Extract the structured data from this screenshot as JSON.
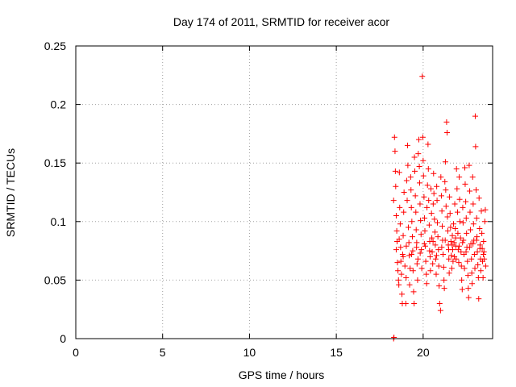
{
  "chart_data": {
    "type": "scatter",
    "title": "Day 174 of 2011, SRMTID for receiver acor",
    "xlabel": "GPS time / hours",
    "ylabel": "SRMTID / TECUs",
    "xlim": [
      0,
      24
    ],
    "ylim": [
      0,
      0.25
    ],
    "x_ticks": [
      0,
      5,
      10,
      15,
      20
    ],
    "x_tick_labels": [
      "0",
      "5",
      "10",
      "15",
      "20"
    ],
    "y_ticks": [
      0,
      0.05,
      0.1,
      0.15,
      0.2,
      0.25
    ],
    "y_tick_labels": [
      "0",
      "0.05",
      "0.1",
      "0.15",
      "0.2",
      "0.25"
    ],
    "grid": true,
    "marker": "+",
    "color": "#ff0000",
    "series": [
      {
        "points": [
          [
            18.3,
            0.0
          ],
          [
            18.32,
            0.001
          ],
          [
            18.3,
            0.118
          ],
          [
            18.35,
            0.172
          ],
          [
            18.38,
            0.16
          ],
          [
            18.4,
            0.143
          ],
          [
            18.42,
            0.13
          ],
          [
            18.45,
            0.105
          ],
          [
            18.48,
            0.092
          ],
          [
            18.5,
            0.083
          ],
          [
            18.52,
            0.065
          ],
          [
            18.55,
            0.058
          ],
          [
            18.58,
            0.05
          ],
          [
            18.6,
            0.046
          ],
          [
            18.63,
            0.142
          ],
          [
            18.65,
            0.112
          ],
          [
            18.68,
            0.098
          ],
          [
            18.7,
            0.078
          ],
          [
            18.72,
            0.066
          ],
          [
            18.75,
            0.055
          ],
          [
            18.78,
            0.038
          ],
          [
            18.8,
            0.03
          ],
          [
            18.82,
            0.072
          ],
          [
            18.85,
            0.088
          ],
          [
            18.88,
            0.108
          ],
          [
            18.9,
            0.125
          ],
          [
            18.95,
            0.062
          ],
          [
            19.0,
            0.03
          ],
          [
            19.02,
            0.052
          ],
          [
            19.05,
            0.135
          ],
          [
            19.08,
            0.118
          ],
          [
            19.1,
            0.165
          ],
          [
            19.12,
            0.148
          ],
          [
            19.15,
            0.095
          ],
          [
            19.18,
            0.082
          ],
          [
            19.2,
            0.071
          ],
          [
            19.22,
            0.046
          ],
          [
            19.25,
            0.06
          ],
          [
            19.28,
            0.138
          ],
          [
            19.3,
            0.127
          ],
          [
            19.32,
            0.112
          ],
          [
            19.35,
            0.1
          ],
          [
            19.38,
            0.087
          ],
          [
            19.4,
            0.075
          ],
          [
            19.42,
            0.058
          ],
          [
            19.45,
            0.04
          ],
          [
            19.48,
            0.03
          ],
          [
            19.5,
            0.155
          ],
          [
            19.52,
            0.143
          ],
          [
            19.55,
            0.122
          ],
          [
            19.58,
            0.108
          ],
          [
            19.6,
            0.093
          ],
          [
            19.62,
            0.078
          ],
          [
            19.65,
            0.064
          ],
          [
            19.68,
            0.05
          ],
          [
            19.7,
            0.068
          ],
          [
            19.72,
            0.158
          ],
          [
            19.75,
            0.17
          ],
          [
            19.78,
            0.147
          ],
          [
            19.8,
            0.133
          ],
          [
            19.82,
            0.115
          ],
          [
            19.85,
            0.101
          ],
          [
            19.88,
            0.089
          ],
          [
            19.9,
            0.076
          ],
          [
            19.92,
            0.06
          ],
          [
            19.95,
            0.224
          ],
          [
            19.98,
            0.172
          ],
          [
            20.0,
            0.152
          ],
          [
            20.02,
            0.139
          ],
          [
            20.05,
            0.121
          ],
          [
            20.08,
            0.103
          ],
          [
            20.1,
            0.092
          ],
          [
            20.12,
            0.079
          ],
          [
            20.15,
            0.066
          ],
          [
            20.18,
            0.055
          ],
          [
            20.2,
            0.047
          ],
          [
            20.22,
            0.112
          ],
          [
            20.25,
            0.131
          ],
          [
            20.28,
            0.166
          ],
          [
            20.3,
            0.145
          ],
          [
            20.32,
            0.118
          ],
          [
            20.35,
            0.097
          ],
          [
            20.38,
            0.083
          ],
          [
            20.4,
            0.07
          ],
          [
            20.42,
            0.058
          ],
          [
            20.45,
            0.128
          ],
          [
            20.48,
            0.107
          ],
          [
            20.5,
            0.086
          ],
          [
            20.52,
            0.074
          ],
          [
            20.55,
            0.064
          ],
          [
            20.58,
            0.115
          ],
          [
            20.6,
            0.141
          ],
          [
            20.62,
            0.124
          ],
          [
            20.65,
            0.102
          ],
          [
            20.68,
            0.091
          ],
          [
            20.7,
            0.08
          ],
          [
            20.72,
            0.068
          ],
          [
            20.75,
            0.055
          ],
          [
            20.78,
            0.13
          ],
          [
            20.8,
            0.118
          ],
          [
            20.82,
            0.099
          ],
          [
            20.85,
            0.087
          ],
          [
            20.88,
            0.076
          ],
          [
            20.9,
            0.062
          ],
          [
            20.92,
            0.045
          ],
          [
            20.95,
            0.03
          ],
          [
            21.0,
            0.024
          ],
          [
            21.02,
            0.138
          ],
          [
            21.05,
            0.122
          ],
          [
            21.08,
            0.109
          ],
          [
            21.1,
            0.096
          ],
          [
            21.12,
            0.084
          ],
          [
            21.15,
            0.072
          ],
          [
            21.18,
            0.061
          ],
          [
            21.2,
            0.05
          ],
          [
            21.22,
            0.043
          ],
          [
            21.25,
            0.134
          ],
          [
            21.28,
            0.151
          ],
          [
            21.3,
            0.127
          ],
          [
            21.32,
            0.113
          ],
          [
            21.35,
            0.185
          ],
          [
            21.38,
            0.176
          ],
          [
            21.4,
            0.104
          ],
          [
            21.42,
            0.092
          ],
          [
            21.45,
            0.08
          ],
          [
            21.48,
            0.068
          ],
          [
            21.5,
            0.056
          ],
          [
            21.52,
            0.121
          ],
          [
            21.55,
            0.107
          ],
          [
            21.58,
            0.095
          ],
          [
            21.6,
            0.083
          ],
          [
            21.62,
            0.071
          ],
          [
            21.65,
            0.06
          ],
          [
            21.68,
            0.088
          ],
          [
            21.7,
            0.076
          ],
          [
            21.72,
            0.066
          ],
          [
            21.75,
            0.098
          ],
          [
            21.78,
            0.082
          ],
          [
            21.8,
            0.07
          ],
          [
            21.82,
            0.115
          ],
          [
            21.85,
            0.094
          ],
          [
            21.88,
            0.079
          ],
          [
            21.9,
            0.068
          ],
          [
            21.92,
            0.145
          ],
          [
            21.95,
            0.128
          ],
          [
            21.98,
            0.108
          ],
          [
            22.0,
            0.09
          ],
          [
            22.02,
            0.076
          ],
          [
            22.05,
            0.065
          ],
          [
            22.08,
            0.138
          ],
          [
            22.1,
            0.119
          ],
          [
            22.12,
            0.1
          ],
          [
            22.15,
            0.086
          ],
          [
            22.18,
            0.074
          ],
          [
            22.2,
            0.062
          ],
          [
            22.22,
            0.05
          ],
          [
            22.25,
            0.042
          ],
          [
            22.28,
            0.112
          ],
          [
            22.3,
            0.099
          ],
          [
            22.32,
            0.084
          ],
          [
            22.35,
            0.072
          ],
          [
            22.38,
            0.06
          ],
          [
            22.4,
            0.146
          ],
          [
            22.42,
            0.132
          ],
          [
            22.45,
            0.117
          ],
          [
            22.48,
            0.103
          ],
          [
            22.5,
            0.09
          ],
          [
            22.52,
            0.078
          ],
          [
            22.55,
            0.066
          ],
          [
            22.58,
            0.054
          ],
          [
            22.6,
            0.043
          ],
          [
            22.62,
            0.035
          ],
          [
            22.65,
            0.148
          ],
          [
            22.68,
            0.126
          ],
          [
            22.7,
            0.108
          ],
          [
            22.72,
            0.093
          ],
          [
            22.75,
            0.081
          ],
          [
            22.78,
            0.068
          ],
          [
            22.8,
            0.056
          ],
          [
            22.82,
            0.047
          ],
          [
            22.85,
            0.138
          ],
          [
            22.88,
            0.115
          ],
          [
            22.9,
            0.098
          ],
          [
            22.92,
            0.084
          ],
          [
            22.95,
            0.072
          ],
          [
            22.98,
            0.06
          ],
          [
            23.0,
            0.19
          ],
          [
            23.02,
            0.164
          ],
          [
            23.05,
            0.127
          ],
          [
            23.08,
            0.103
          ],
          [
            23.1,
            0.087
          ],
          [
            23.12,
            0.074
          ],
          [
            23.15,
            0.063
          ],
          [
            23.18,
            0.052
          ],
          [
            23.2,
            0.034
          ],
          [
            23.22,
            0.12
          ],
          [
            23.25,
            0.094
          ],
          [
            23.28,
            0.08
          ],
          [
            23.3,
            0.068
          ],
          [
            23.32,
            0.058
          ],
          [
            23.35,
            0.109
          ],
          [
            23.38,
            0.09
          ],
          [
            23.4,
            0.077
          ],
          [
            23.42,
            0.066
          ],
          [
            23.45,
            0.052
          ],
          [
            23.48,
            0.083
          ],
          [
            23.5,
            0.074
          ],
          [
            23.52,
            0.068
          ],
          [
            23.55,
            0.1
          ],
          [
            23.58,
            0.11
          ],
          [
            23.6,
            0.062
          ],
          [
            18.45,
            0.076
          ],
          [
            18.62,
            0.085
          ],
          [
            18.85,
            0.07
          ],
          [
            19.03,
            0.079
          ],
          [
            19.33,
            0.072
          ],
          [
            19.63,
            0.082
          ],
          [
            19.83,
            0.073
          ],
          [
            20.07,
            0.081
          ],
          [
            20.37,
            0.075
          ],
          [
            20.57,
            0.083
          ],
          [
            20.77,
            0.071
          ],
          [
            21.07,
            0.078
          ],
          [
            21.27,
            0.084
          ],
          [
            21.47,
            0.076
          ],
          [
            21.67,
            0.08
          ],
          [
            21.87,
            0.086
          ],
          [
            22.07,
            0.079
          ],
          [
            22.27,
            0.082
          ],
          [
            22.47,
            0.074
          ],
          [
            22.67,
            0.078
          ],
          [
            22.87,
            0.081
          ],
          [
            23.07,
            0.084
          ],
          [
            23.27,
            0.077
          ],
          [
            23.47,
            0.072
          ]
        ]
      }
    ]
  }
}
